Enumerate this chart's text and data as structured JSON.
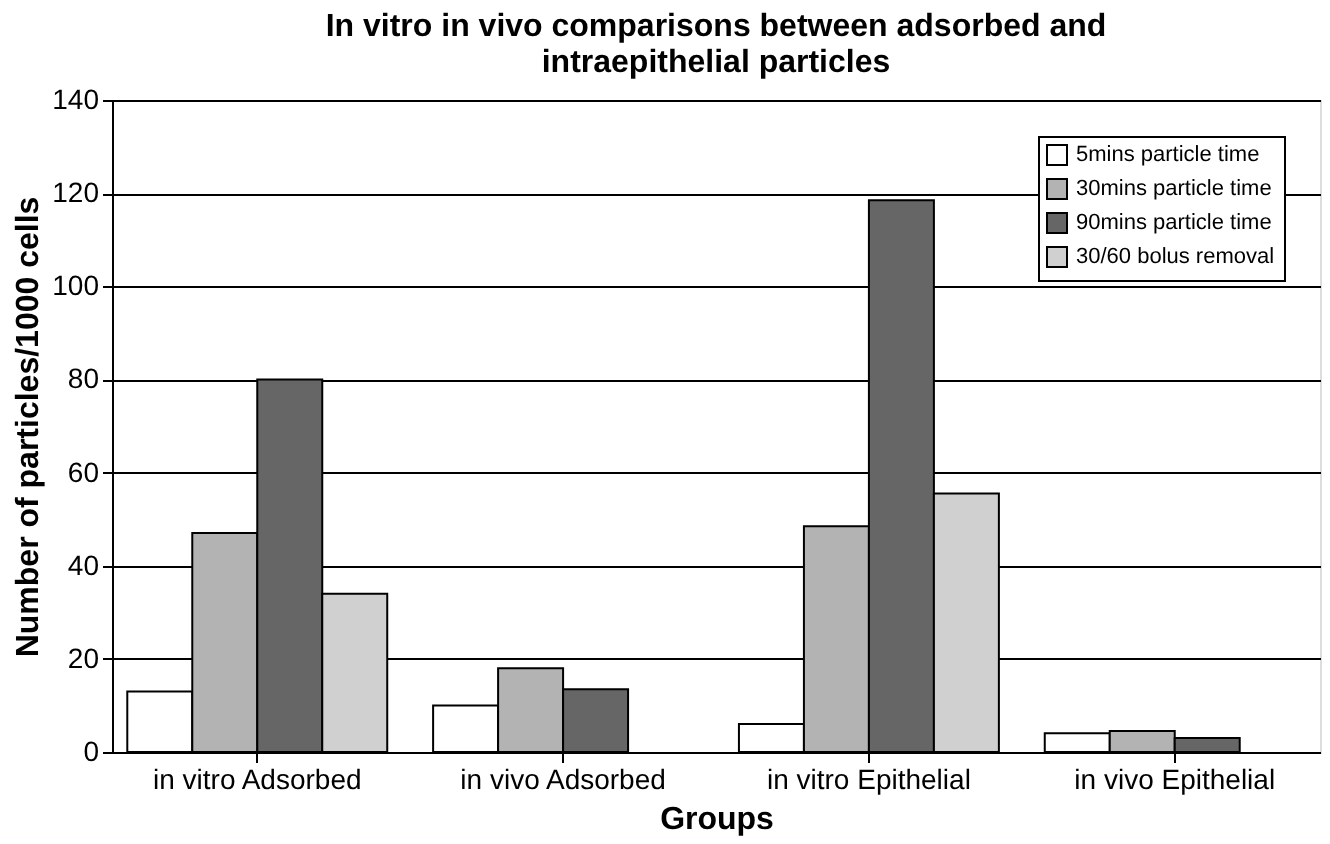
{
  "chart_data": {
    "type": "bar",
    "title": "In vitro in vivo comparisons between adsorbed and intraepithelial particles",
    "xlabel": "Groups",
    "ylabel": "Number of particles/1000 cells",
    "categories": [
      "in vitro Adsorbed",
      "in vivo Adsorbed",
      "in vitro Epithelial",
      "in vivo Epithelial"
    ],
    "series": [
      {
        "name": "5mins particle time",
        "color": "#ffffff",
        "values": [
          13,
          10,
          6,
          4
        ]
      },
      {
        "name": "30mins particle time",
        "color": "#b3b3b3",
        "values": [
          47,
          18,
          48.5,
          4.5
        ]
      },
      {
        "name": "90mins particle time",
        "color": "#666666",
        "values": [
          80,
          13.5,
          118.5,
          3
        ]
      },
      {
        "name": "30/60 bolus removal",
        "color": "#d0d0d0",
        "values": [
          34,
          null,
          55.5,
          null
        ]
      }
    ],
    "ylim": [
      0,
      140
    ],
    "yticks": [
      0,
      20,
      40,
      60,
      80,
      100,
      120,
      140
    ],
    "grid": "y",
    "legend": "top right"
  }
}
